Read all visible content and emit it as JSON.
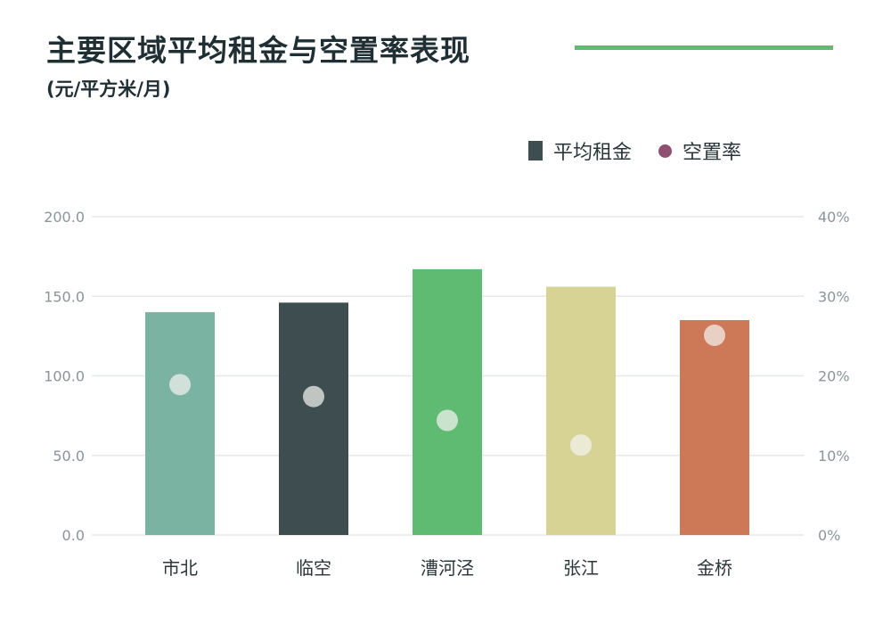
{
  "header": {
    "title": "主要区域平均租金与空置率表现",
    "unit": "(元/平方米/月)"
  },
  "colors": {
    "title_rule": "#5fba72",
    "grid": "#e6e9ea",
    "legend_rent": "#3d4d50",
    "legend_vacancy": "#8e4f71",
    "dot_fill": "#f3f3ef"
  },
  "legend": {
    "rent_label": "平均租金",
    "vacancy_label": "空置率"
  },
  "chart_data": {
    "type": "bar",
    "title": "主要区域平均租金与空置率表现",
    "subtitle": "(元/平方米/月)",
    "categories": [
      "市北",
      "临空",
      "漕河泾",
      "张江",
      "金桥"
    ],
    "series": [
      {
        "name": "平均租金",
        "axis": "left",
        "values": [
          140,
          146,
          167,
          156,
          135
        ],
        "colors": [
          "#7ab3a1",
          "#3d4d50",
          "#5fba72",
          "#d6d394",
          "#cd7856"
        ]
      },
      {
        "name": "空置率",
        "axis": "right",
        "marker": "dot",
        "values": [
          18.9,
          17.4,
          14.4,
          11.3,
          25.1
        ],
        "unit": "%"
      }
    ],
    "y_left": {
      "ylim": [
        0,
        200
      ],
      "ticks": [
        "0.0",
        "50.0",
        "100.0",
        "150.0",
        "200.0"
      ]
    },
    "y_right": {
      "ylim": [
        0,
        40
      ],
      "ticks": [
        "0%",
        "10%",
        "20%",
        "30%",
        "40%"
      ]
    },
    "grid": true,
    "legend_position": "top-right"
  }
}
